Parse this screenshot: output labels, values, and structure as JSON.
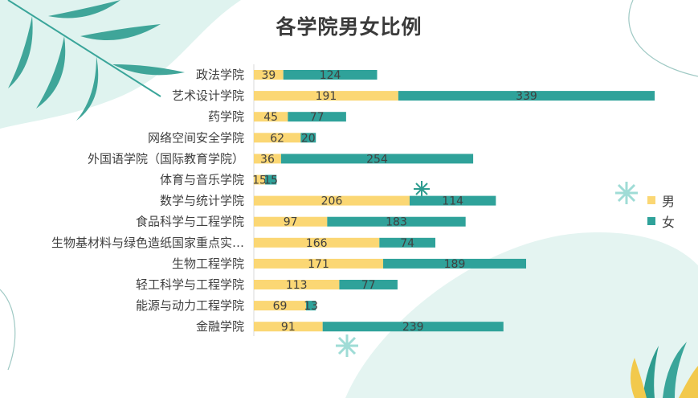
{
  "colors": {
    "male": "#fbd774",
    "female": "#2fa29a",
    "background_accent": "#dff3ef"
  },
  "chart_data": {
    "type": "bar",
    "orientation": "horizontal",
    "stacked": true,
    "title": "各学院男女比例",
    "categories": [
      "政法学院",
      "艺术设计学院",
      "药学院",
      "网络空间安全学院",
      "外国语学院（国际教育学院）",
      "体育与音乐学院",
      "数学与统计学院",
      "食品科学与工程学院",
      "生物基材料与绿色造纸国家重点实…",
      "生物工程学院",
      "轻工科学与工程学院",
      "能源与动力工程学院",
      "金融学院"
    ],
    "series": [
      {
        "name": "男",
        "values": [
          39,
          191,
          45,
          62,
          36,
          15,
          206,
          97,
          166,
          171,
          113,
          69,
          91
        ]
      },
      {
        "name": "女",
        "values": [
          124,
          339,
          77,
          20,
          254,
          15,
          114,
          183,
          74,
          189,
          77,
          13,
          239
        ]
      }
    ],
    "xlim": [
      0,
      600
    ],
    "grid": false,
    "legend_position": "right"
  }
}
